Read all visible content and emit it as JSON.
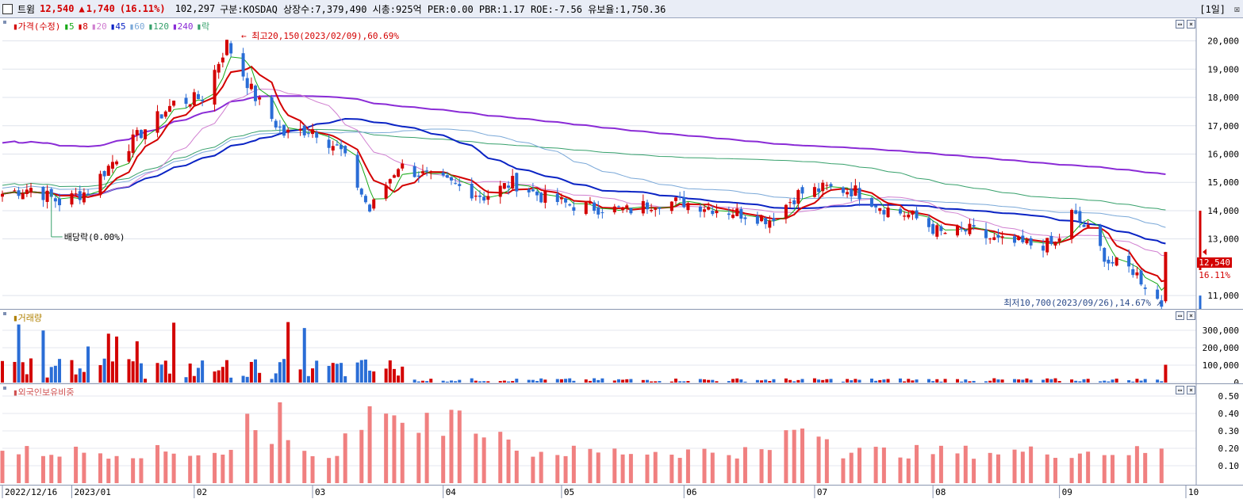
{
  "header": {
    "stock_name": "트윔",
    "price": "12,540",
    "change_arrow": "▲",
    "change": "1,740",
    "change_pct": "(16.11%)",
    "volume": "102,297",
    "market_info": "구분:KOSDAQ 상장수:7,379,490 시총:925억 PER:0.00 PBR:1.17 ROE:-7.56 유보율:1,750.36",
    "period": "[1일]",
    "close_symbol": "☒"
  },
  "price_pane": {
    "legend": [
      "가격(수정)",
      "5",
      "8",
      "20",
      "45",
      "60",
      "120",
      "240",
      "락"
    ],
    "legend_colors": [
      "#d30000",
      "#17a917",
      "#d30000",
      "#d07fd0",
      "#0a23c4",
      "#7aa8d8",
      "#36a06b",
      "#8a2bd6",
      "#36a06b"
    ],
    "y_ticks": [
      "20,000",
      "19,000",
      "18,000",
      "17,000",
      "16,000",
      "15,000",
      "14,000",
      "13,000",
      "11,000"
    ],
    "high_annotation": "최고20,150(2023/02/09),60.69%",
    "low_annotation": "최저10,700(2023/09/26),14.67%",
    "dividend_annotation": "배당락(0.00%)",
    "current_price": "12,540",
    "current_pct": "16.11%"
  },
  "volume_pane": {
    "legend": "거래량",
    "y_ticks": [
      "300,000",
      "200,000",
      "100,000",
      "0"
    ]
  },
  "foreign_pane": {
    "legend": "외국인보유비중",
    "y_ticks": [
      "0.50",
      "0.40",
      "0.30",
      "0.20",
      "0.10"
    ]
  },
  "x_axis": [
    "2022/12/16",
    "2023/01",
    "02",
    "03",
    "04",
    "05",
    "06",
    "07",
    "08",
    "09",
    "10"
  ],
  "colors": {
    "up": "#d30000",
    "down": "#2a6dd6",
    "ma5": "#17a917",
    "ma8": "#d30000",
    "ma20": "#d07fd0",
    "ma45": "#0a23c4",
    "ma60": "#7aa8d8",
    "ma120": "#36a06b",
    "ma240": "#8a2bd6",
    "foreign": "#f08080"
  },
  "chart_data": {
    "type": "candlestick",
    "title": "트윔",
    "x_range": [
      "2022/12/16",
      "2023/10"
    ],
    "price_ylim": [
      10500,
      20800
    ],
    "close_path": [
      [
        "2022/12/16",
        14600
      ],
      [
        "2022/12/23",
        14800
      ],
      [
        "2022/12/30",
        14300
      ],
      [
        "2023/01/06",
        14700
      ],
      [
        "2023/01/13",
        15900
      ],
      [
        "2023/01/20",
        16900
      ],
      [
        "2023/01/27",
        17800
      ],
      [
        "2023/02/03",
        18000
      ],
      [
        "2023/02/09",
        19900
      ],
      [
        "2023/02/16",
        18000
      ],
      [
        "2023/02/23",
        16700
      ],
      [
        "2023/03/02",
        16900
      ],
      [
        "2023/03/09",
        16100
      ],
      [
        "2023/03/16",
        14000
      ],
      [
        "2023/03/23",
        15600
      ],
      [
        "2023/03/30",
        15200
      ],
      [
        "2023/04/06",
        14900
      ],
      [
        "2023/04/13",
        14500
      ],
      [
        "2023/04/20",
        15000
      ],
      [
        "2023/04/27",
        14500
      ],
      [
        "2023/05/04",
        14200
      ],
      [
        "2023/05/11",
        14100
      ],
      [
        "2023/05/18",
        14000
      ],
      [
        "2023/05/25",
        14300
      ],
      [
        "2023/06/01",
        14300
      ],
      [
        "2023/06/08",
        14100
      ],
      [
        "2023/06/15",
        13900
      ],
      [
        "2023/06/22",
        13700
      ],
      [
        "2023/06/29",
        14600
      ],
      [
        "2023/07/06",
        14800
      ],
      [
        "2023/07/13",
        14700
      ],
      [
        "2023/07/20",
        14100
      ],
      [
        "2023/07/27",
        13800
      ],
      [
        "2023/08/03",
        13200
      ],
      [
        "2023/08/10",
        13300
      ],
      [
        "2023/08/17",
        12900
      ],
      [
        "2023/08/24",
        12800
      ],
      [
        "2023/08/31",
        12800
      ],
      [
        "2023/09/04",
        13900
      ],
      [
        "2023/09/08",
        13300
      ],
      [
        "2023/09/13",
        12200
      ],
      [
        "2023/09/19",
        11900
      ],
      [
        "2023/09/26",
        10700
      ],
      [
        "2023/09/27",
        12540
      ]
    ],
    "volume_ylim": [
      0,
      400000
    ],
    "foreign_ratio_ylim": [
      0,
      0.55
    ]
  }
}
